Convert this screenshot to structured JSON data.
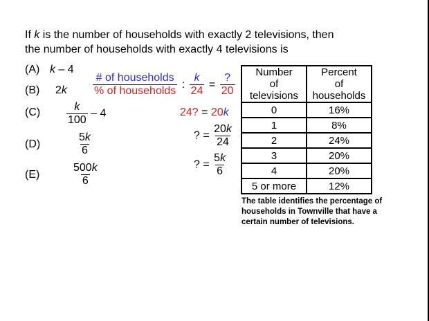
{
  "question": {
    "prefix": "If ",
    "var": "k",
    "line1_rest": " is the number of households with exactly 2 televisions, then",
    "line2": "the number of households with exactly 4 televisions is"
  },
  "options": {
    "A": {
      "label": "(A)",
      "var": "k",
      "rest": " – 4"
    },
    "B": {
      "label": "(B)",
      "num": "2",
      "var": "k"
    },
    "C": {
      "label": "(C)",
      "num_var": "k",
      "den": "100",
      "rest": "– 4"
    },
    "D": {
      "label": "(D)",
      "num": "5",
      "var": "k",
      "den": "6"
    },
    "E": {
      "label": "(E)",
      "num": "500",
      "var": "k",
      "den": "6"
    }
  },
  "work": {
    "ratio_num": "# of households",
    "ratio_den": "% of households",
    "colon": ":",
    "eq1_num_var": "k",
    "eq1_den": "24",
    "eq": "=",
    "q": "?",
    "eq1_rhs_den": "20",
    "eq2_lhs": "24?",
    "eq2_rhs_num": "20",
    "eq2_rhs_var": "k",
    "eq3_num": "20",
    "eq3_var": "k",
    "eq3_den": "24",
    "eq4_num": "5",
    "eq4_var": "k",
    "eq4_den": "6"
  },
  "table": {
    "header": {
      "col1": [
        "Number",
        "of",
        "televisions"
      ],
      "col2": [
        "Percent",
        "of",
        "households"
      ]
    },
    "rows": [
      {
        "tv": "0",
        "pct": "16%"
      },
      {
        "tv": "1",
        "pct": "8%"
      },
      {
        "tv": "2",
        "pct": "24%"
      },
      {
        "tv": "3",
        "pct": "20%"
      },
      {
        "tv": "4",
        "pct": "20%"
      },
      {
        "tv": "5 or more",
        "pct": "12%"
      }
    ],
    "caption": "The table identifies the percentage of households in Townville that have a certain number of televisions."
  }
}
